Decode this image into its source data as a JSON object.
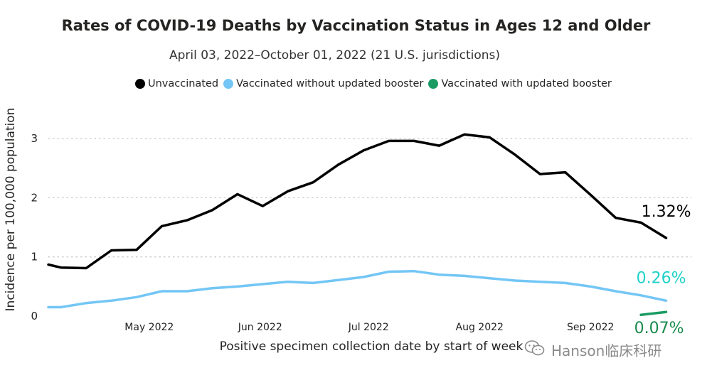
{
  "chart_data": {
    "type": "line",
    "title": "Rates of COVID-19 Deaths by Vaccination Status in Ages 12 and Older",
    "subtitle": "April 03, 2022–October 01, 2022 (21 U.S. jurisdictions)",
    "xlabel": "Positive specimen collection date by start of week",
    "ylabel": "Incidence per 100,000 population",
    "ylim": [
      0,
      3.3
    ],
    "yticks": [
      0,
      1,
      2,
      3
    ],
    "xticks": [
      {
        "label": "May 2022",
        "week": 4
      },
      {
        "label": "Jun 2022",
        "week": 8.4
      },
      {
        "label": "Jul 2022",
        "week": 12.7
      },
      {
        "label": "Aug 2022",
        "week": 17.1
      },
      {
        "label": "Sep 2022",
        "week": 21.5
      }
    ],
    "x_range": [
      0,
      25.5
    ],
    "grid": true,
    "legend_position": "top",
    "series": [
      {
        "name": "Unvaccinated",
        "color": "#000000",
        "x": [
          0,
          0.5,
          1.5,
          2.5,
          3.5,
          4.5,
          5.5,
          6.5,
          7.5,
          8.5,
          9.5,
          10.5,
          11.5,
          12.5,
          13.5,
          14.5,
          15.5,
          16.5,
          17.5,
          18.5,
          19.5,
          20.5,
          21.5,
          22.5,
          23.5,
          24.5
        ],
        "values": [
          0.87,
          0.82,
          0.81,
          1.11,
          1.12,
          1.52,
          1.62,
          1.79,
          2.06,
          1.86,
          2.11,
          2.26,
          2.56,
          2.8,
          2.96,
          2.96,
          2.88,
          3.07,
          3.02,
          2.73,
          2.4,
          2.43,
          2.05,
          1.66,
          1.58,
          1.32
        ],
        "end_label": "1.32%",
        "end_label_color": "#000000"
      },
      {
        "name": "Vaccinated without updated booster",
        "color": "#73c6f5",
        "x": [
          0,
          0.5,
          1.5,
          2.5,
          3.5,
          4.5,
          5.5,
          6.5,
          7.5,
          8.5,
          9.5,
          10.5,
          11.5,
          12.5,
          13.5,
          14.5,
          15.5,
          16.5,
          17.5,
          18.5,
          19.5,
          20.5,
          21.5,
          22.5,
          23.5,
          24.5
        ],
        "values": [
          0.15,
          0.15,
          0.22,
          0.26,
          0.32,
          0.42,
          0.42,
          0.47,
          0.5,
          0.54,
          0.58,
          0.56,
          0.61,
          0.66,
          0.75,
          0.76,
          0.7,
          0.68,
          0.64,
          0.6,
          0.58,
          0.56,
          0.5,
          0.42,
          0.35,
          0.26
        ],
        "end_label": "0.26%",
        "end_label_color": "#1fd1c8"
      },
      {
        "name": "Vaccinated with updated booster",
        "color": "#1a9b63",
        "x": [
          23.5,
          24.5
        ],
        "values": [
          0.02,
          0.07
        ],
        "end_label": "0.07%",
        "end_label_color": "#1a8a4c"
      }
    ]
  },
  "legend": {
    "items": [
      {
        "label": "Unvaccinated",
        "color": "#000000"
      },
      {
        "label": "Vaccinated without updated booster",
        "color": "#73c6f5"
      },
      {
        "label": "Vaccinated with updated booster",
        "color": "#1a9b63"
      }
    ]
  },
  "watermark": {
    "text": "Hanson临床科研",
    "icon": "wechat-icon"
  }
}
